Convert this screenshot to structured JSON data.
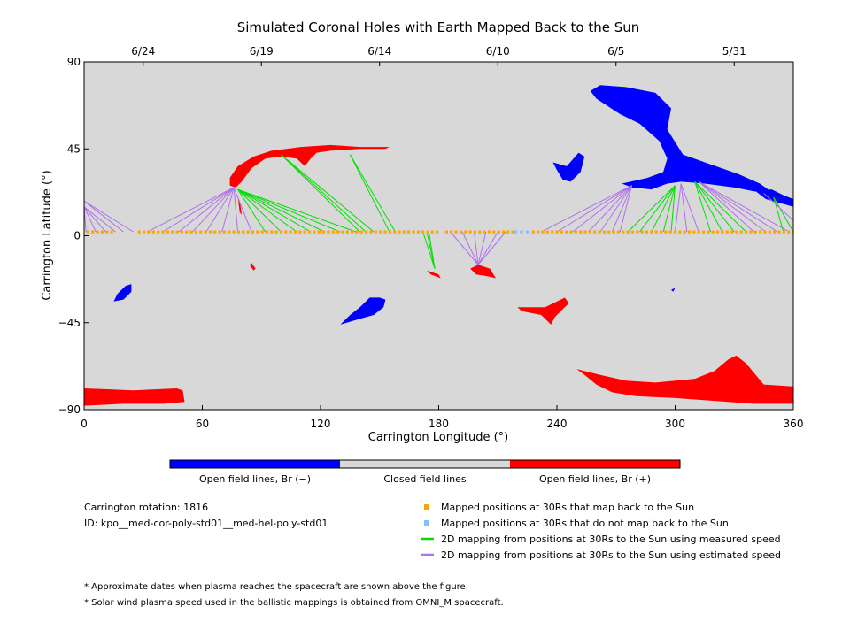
{
  "chart_data": {
    "type": "map",
    "title": "Simulated Coronal Holes with Earth Mapped Back to the Sun",
    "xlabel": "Carrington Longitude (°)",
    "ylabel": "Carrington Latitude (°)",
    "xlim": [
      0,
      360
    ],
    "ylim": [
      -90,
      90
    ],
    "xticks": [
      0,
      60,
      120,
      180,
      240,
      300,
      360
    ],
    "yticks": [
      -90,
      -45,
      0,
      45,
      90
    ],
    "top_dates": [
      {
        "label": "6/24",
        "lon": 30
      },
      {
        "label": "6/19",
        "lon": 90
      },
      {
        "label": "6/14",
        "lon": 150
      },
      {
        "label": "6/10",
        "lon": 210
      },
      {
        "label": "6/5",
        "lon": 270
      },
      {
        "label": "5/31",
        "lon": 330
      }
    ],
    "colors": {
      "closed": "#d8d8d8",
      "open_negative": "#0000ff",
      "open_positive": "#ff0000",
      "mapped_orange": "#ffa500",
      "unmapped_blue": "#80c0ff",
      "measured_green": "#00e000",
      "estimated_purple": "#b070f0"
    },
    "colorbar": [
      {
        "label": "Open field lines, Br (−)",
        "color": "#0000ff"
      },
      {
        "label": "Closed field lines",
        "color": "#d8d8d8"
      },
      {
        "label": "Open field lines, Br (+)",
        "color": "#ff0000"
      }
    ],
    "legend": [
      {
        "label": "Mapped positions at 30Rs that map back to the Sun",
        "color": "#ffa500",
        "kind": "square"
      },
      {
        "label": "Mapped positions at 30Rs that do not map back to the Sun",
        "color": "#80c0ff",
        "kind": "square"
      },
      {
        "label": "2D mapping from positions at 30Rs to the Sun using measured speed",
        "color": "#00e000",
        "kind": "line"
      },
      {
        "label": "2D mapping from positions at 30Rs to the Sun using estimated speed",
        "color": "#b070f0",
        "kind": "line"
      }
    ],
    "coronal_holes": [
      {
        "polarity": "negative",
        "lonlat": [
          [
            257,
            75
          ],
          [
            262,
            78
          ],
          [
            275,
            77
          ],
          [
            290,
            74
          ],
          [
            298,
            66
          ],
          [
            296,
            55
          ],
          [
            304,
            42
          ],
          [
            318,
            37
          ],
          [
            332,
            32
          ],
          [
            343,
            27
          ],
          [
            350,
            22
          ],
          [
            340,
            23
          ],
          [
            330,
            25
          ],
          [
            315,
            27
          ],
          [
            303,
            28
          ],
          [
            296,
            27
          ],
          [
            288,
            24
          ],
          [
            278,
            25
          ],
          [
            273,
            27
          ],
          [
            286,
            30
          ],
          [
            294,
            33
          ],
          [
            296,
            40
          ],
          [
            292,
            49
          ],
          [
            282,
            58
          ],
          [
            272,
            63
          ],
          [
            266,
            67
          ],
          [
            260,
            71
          ]
        ]
      },
      {
        "polarity": "negative",
        "lonlat": [
          [
            341,
            23
          ],
          [
            349,
            24
          ],
          [
            355,
            21
          ],
          [
            360,
            19
          ],
          [
            360,
            15
          ],
          [
            353,
            17
          ],
          [
            346,
            19
          ]
        ]
      },
      {
        "polarity": "negative",
        "lonlat": [
          [
            245,
            36
          ],
          [
            251,
            43
          ],
          [
            254,
            41
          ],
          [
            252,
            33
          ],
          [
            247,
            28
          ],
          [
            243,
            29
          ],
          [
            240,
            34
          ],
          [
            238,
            38
          ]
        ]
      },
      {
        "polarity": "negative",
        "lonlat": [
          [
            130,
            -46
          ],
          [
            140,
            -43
          ],
          [
            147,
            -41
          ],
          [
            152,
            -37
          ],
          [
            153,
            -33
          ],
          [
            150,
            -32
          ],
          [
            145,
            -32
          ],
          [
            140,
            -37
          ],
          [
            135,
            -41
          ]
        ]
      },
      {
        "polarity": "negative",
        "lonlat": [
          [
            15,
            -34
          ],
          [
            20,
            -33
          ],
          [
            24,
            -29
          ],
          [
            24,
            -25
          ],
          [
            21,
            -26
          ],
          [
            17,
            -30
          ]
        ]
      },
      {
        "polarity": "negative",
        "lonlat": [
          [
            298,
            -28
          ],
          [
            300,
            -27
          ],
          [
            299,
            -29
          ]
        ]
      },
      {
        "polarity": "positive",
        "lonlat": [
          [
            74,
            30
          ],
          [
            78,
            36
          ],
          [
            86,
            41
          ],
          [
            95,
            44
          ],
          [
            110,
            46
          ],
          [
            125,
            47
          ],
          [
            140,
            46
          ],
          [
            155,
            46
          ],
          [
            153,
            45
          ],
          [
            140,
            45
          ],
          [
            125,
            44
          ],
          [
            118,
            43
          ],
          [
            115,
            40
          ],
          [
            112,
            36
          ],
          [
            108,
            40
          ],
          [
            100,
            41
          ],
          [
            92,
            40
          ],
          [
            85,
            35
          ],
          [
            80,
            28
          ],
          [
            77,
            25
          ],
          [
            74,
            26
          ]
        ]
      },
      {
        "polarity": "positive",
        "lonlat": [
          [
            78,
            20
          ],
          [
            79,
            12
          ],
          [
            80,
            11
          ],
          [
            79,
            18
          ]
        ]
      },
      {
        "polarity": "positive",
        "lonlat": [
          [
            200,
            -15
          ],
          [
            206,
            -17
          ],
          [
            209,
            -22
          ],
          [
            205,
            -21
          ],
          [
            199,
            -20
          ],
          [
            196,
            -17
          ]
        ]
      },
      {
        "polarity": "positive",
        "lonlat": [
          [
            174,
            -18
          ],
          [
            180,
            -20
          ],
          [
            181,
            -22
          ],
          [
            176,
            -20
          ]
        ]
      },
      {
        "polarity": "positive",
        "lonlat": [
          [
            85,
            -14
          ],
          [
            87,
            -17
          ],
          [
            86,
            -18
          ],
          [
            84,
            -15
          ]
        ]
      },
      {
        "polarity": "positive",
        "lonlat": [
          [
            220,
            -37
          ],
          [
            234,
            -37
          ],
          [
            244,
            -32
          ],
          [
            246,
            -35
          ],
          [
            239,
            -42
          ],
          [
            237,
            -46
          ],
          [
            232,
            -41
          ],
          [
            222,
            -39
          ]
        ]
      },
      {
        "polarity": "positive",
        "lonlat": [
          [
            250,
            -69
          ],
          [
            262,
            -72
          ],
          [
            275,
            -75
          ],
          [
            290,
            -76
          ],
          [
            310,
            -74
          ],
          [
            320,
            -70
          ],
          [
            327,
            -64
          ],
          [
            331,
            -62
          ],
          [
            336,
            -66
          ],
          [
            345,
            -77
          ],
          [
            360,
            -78
          ],
          [
            360,
            -87
          ],
          [
            340,
            -87
          ],
          [
            300,
            -84
          ],
          [
            280,
            -83
          ],
          [
            268,
            -81
          ],
          [
            260,
            -77
          ],
          [
            254,
            -72
          ]
        ]
      },
      {
        "polarity": "positive",
        "lonlat": [
          [
            0,
            -79
          ],
          [
            25,
            -80
          ],
          [
            47,
            -79
          ],
          [
            50,
            -80
          ],
          [
            51,
            -86
          ],
          [
            40,
            -87
          ],
          [
            20,
            -87
          ],
          [
            0,
            -88
          ]
        ]
      }
    ],
    "mapped_positions": {
      "lat": 2,
      "unmapped_lons": [
        219,
        222,
        225
      ],
      "lon_ranges": [
        [
          2,
          15
        ],
        [
          28,
          180
        ],
        [
          184,
          218
        ],
        [
          228,
          360
        ]
      ],
      "step": 2.4
    },
    "mapping_lines": [
      {
        "type": "estimated",
        "from": [
          [
            1,
            2
          ],
          [
            6,
            2
          ],
          [
            11,
            2
          ],
          [
            16,
            2
          ]
        ],
        "to": [
          0,
          15
        ]
      },
      {
        "type": "estimated",
        "from": [
          [
            20,
            2
          ],
          [
            25,
            2
          ]
        ],
        "to": [
          0,
          18
        ]
      },
      {
        "type": "estimated",
        "from": [
          [
            32,
            2
          ],
          [
            40,
            2
          ],
          [
            48,
            2
          ],
          [
            55,
            2
          ],
          [
            62,
            2
          ],
          [
            70,
            2
          ],
          [
            78,
            2
          ],
          [
            85,
            2
          ]
        ],
        "to": [
          76,
          25
        ]
      },
      {
        "type": "measured",
        "from": [
          [
            92,
            2
          ],
          [
            100,
            2
          ],
          [
            108,
            2
          ],
          [
            115,
            2
          ],
          [
            122,
            2
          ],
          [
            130,
            2
          ],
          [
            138,
            2
          ]
        ],
        "to": [
          78,
          24
        ]
      },
      {
        "type": "measured",
        "from": [
          [
            140,
            2
          ],
          [
            143,
            2
          ],
          [
            147,
            2
          ]
        ],
        "to": [
          100,
          42
        ]
      },
      {
        "type": "measured",
        "from": [
          [
            155,
            2
          ],
          [
            158,
            2
          ]
        ],
        "to": [
          135,
          42
        ]
      },
      {
        "type": "measured",
        "from": [
          [
            172,
            2
          ],
          [
            174,
            2
          ],
          [
            175,
            2
          ]
        ],
        "to": [
          178,
          -17
        ]
      },
      {
        "type": "estimated",
        "from": [
          [
            186,
            2
          ],
          [
            192,
            2
          ],
          [
            198,
            2
          ],
          [
            204,
            2
          ],
          [
            210,
            2
          ],
          [
            214,
            2
          ]
        ],
        "to": [
          200,
          -15
        ]
      },
      {
        "type": "estimated",
        "from": [
          [
            232,
            2
          ],
          [
            240,
            2
          ],
          [
            248,
            2
          ],
          [
            256,
            2
          ],
          [
            262,
            2
          ],
          [
            268,
            2
          ],
          [
            272,
            2
          ]
        ],
        "to": [
          278,
          26
        ]
      },
      {
        "type": "measured",
        "from": [
          [
            276,
            2
          ],
          [
            282,
            2
          ],
          [
            288,
            2
          ],
          [
            294,
            2
          ],
          [
            298,
            2
          ]
        ],
        "to": [
          300,
          26
        ]
      },
      {
        "type": "estimated",
        "from": [
          [
            300,
            2
          ],
          [
            306,
            2
          ],
          [
            312,
            2
          ]
        ],
        "to": [
          303,
          27
        ]
      },
      {
        "type": "measured",
        "from": [
          [
            318,
            2
          ],
          [
            324,
            2
          ],
          [
            330,
            2
          ],
          [
            336,
            2
          ]
        ],
        "to": [
          310,
          28
        ]
      },
      {
        "type": "estimated",
        "from": [
          [
            340,
            2
          ],
          [
            346,
            2
          ],
          [
            352,
            2
          ],
          [
            358,
            2
          ]
        ],
        "to": [
          312,
          28
        ]
      },
      {
        "type": "measured",
        "from": [
          [
            355,
            2
          ],
          [
            360,
            2
          ]
        ],
        "to": [
          350,
          20
        ]
      },
      {
        "type": "estimated",
        "from": [
          [
            360,
            8
          ]
        ],
        "to": [
          345,
          22
        ]
      }
    ]
  },
  "info": {
    "rotation_label": "Carrington rotation: 1816",
    "id_label": "ID: kpo__med-cor-poly-std01__med-hel-poly-std01"
  },
  "notes": [
    "* Approximate dates when plasma reaches the spacecraft are shown above the figure.",
    "* Solar wind plasma speed used in the ballistic mappings is obtained from OMNI_M spacecraft."
  ]
}
